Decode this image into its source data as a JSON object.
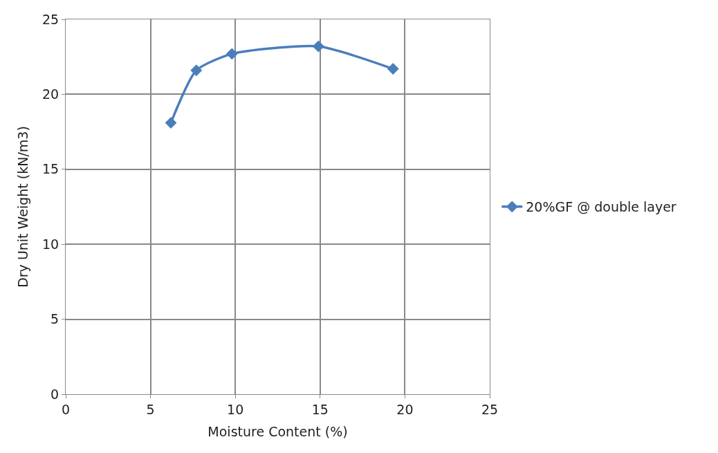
{
  "chart_data": {
    "type": "line",
    "xlabel": "Moisture Content (%)",
    "ylabel": "Dry Unit Weight (kN/m3)",
    "x": [
      6.2,
      7.7,
      9.8,
      14.9,
      19.3
    ],
    "series": [
      {
        "name": "20%GF @ double layer",
        "color": "#4a7ebb",
        "values": [
          18.1,
          21.6,
          22.7,
          23.2,
          21.7
        ]
      }
    ],
    "xlim": [
      0,
      25
    ],
    "xticks": [
      0,
      5,
      10,
      15,
      20,
      25
    ],
    "ylim": [
      0,
      25
    ],
    "yticks": [
      0,
      5,
      10,
      15,
      20,
      25
    ],
    "grid": true,
    "legend": "right",
    "marker": "diamond",
    "line_style": "solid"
  }
}
